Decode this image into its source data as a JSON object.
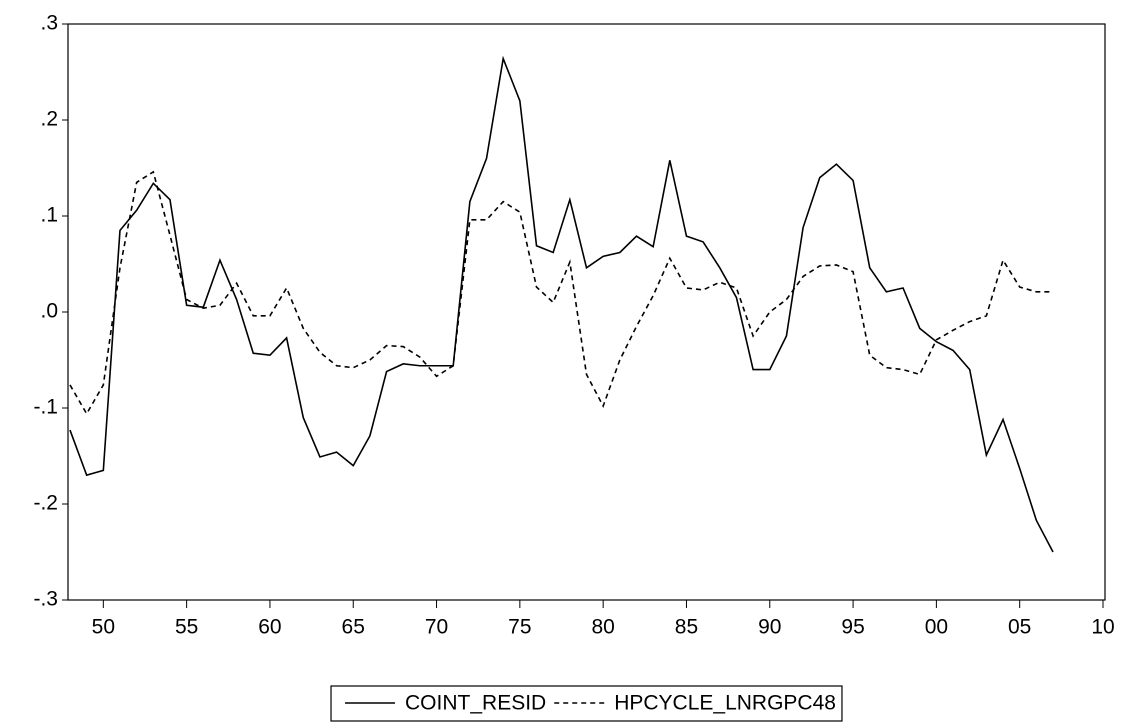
{
  "chart_data": {
    "type": "line",
    "x": [
      1948,
      1949,
      1950,
      1951,
      1952,
      1953,
      1954,
      1955,
      1956,
      1957,
      1958,
      1959,
      1960,
      1961,
      1962,
      1963,
      1964,
      1965,
      1966,
      1967,
      1968,
      1969,
      1970,
      1971,
      1972,
      1973,
      1974,
      1975,
      1976,
      1977,
      1978,
      1979,
      1980,
      1981,
      1982,
      1983,
      1984,
      1985,
      1986,
      1987,
      1988,
      1989,
      1990,
      1991,
      1992,
      1993,
      1994,
      1995,
      1996,
      1997,
      1998,
      1999,
      2000,
      2001,
      2002,
      2003,
      2004,
      2005,
      2006,
      2007
    ],
    "series": [
      {
        "name": "COINT_RESID",
        "color": "#000000",
        "style": "solid",
        "values": [
          -0.123,
          -0.17,
          -0.165,
          0.085,
          0.106,
          0.134,
          0.117,
          0.007,
          0.005,
          0.054,
          0.013,
          -0.043,
          -0.045,
          -0.027,
          -0.11,
          -0.151,
          -0.146,
          -0.16,
          -0.129,
          -0.062,
          -0.054,
          -0.056,
          -0.056,
          -0.056,
          0.115,
          0.16,
          0.264,
          0.22,
          0.069,
          0.062,
          0.117,
          0.046,
          0.058,
          0.062,
          0.079,
          0.068,
          0.158,
          0.079,
          0.073,
          0.046,
          0.015,
          -0.06,
          -0.06,
          -0.025,
          0.088,
          0.14,
          0.154,
          0.137,
          0.046,
          0.021,
          0.025,
          -0.017,
          -0.031,
          -0.04,
          -0.06,
          -0.149,
          -0.112,
          -0.163,
          -0.217,
          -0.25
        ]
      },
      {
        "name": "HPCYCLE_LNRGPC48",
        "color": "#000000",
        "style": "dashed",
        "values": [
          -0.076,
          -0.106,
          -0.076,
          0.046,
          0.135,
          0.146,
          0.08,
          0.013,
          0.004,
          0.007,
          0.03,
          -0.004,
          -0.004,
          0.025,
          -0.017,
          -0.042,
          -0.056,
          -0.058,
          -0.05,
          -0.035,
          -0.036,
          -0.047,
          -0.067,
          -0.056,
          0.096,
          0.096,
          0.115,
          0.104,
          0.026,
          0.01,
          0.052,
          -0.065,
          -0.098,
          -0.05,
          -0.015,
          0.017,
          0.056,
          0.025,
          0.023,
          0.031,
          0.025,
          -0.025,
          0,
          0.013,
          0.037,
          0.048,
          0.049,
          0.042,
          -0.045,
          -0.058,
          -0.06,
          -0.065,
          -0.029,
          -0.019,
          -0.01,
          -0.004,
          0.054,
          0.026,
          0.021,
          0.021
        ]
      }
    ],
    "xlim": [
      1948,
      2010
    ],
    "xticks": [
      {
        "value": 1950,
        "label": "50"
      },
      {
        "value": 1955,
        "label": "55"
      },
      {
        "value": 1960,
        "label": "60"
      },
      {
        "value": 1965,
        "label": "65"
      },
      {
        "value": 1970,
        "label": "70"
      },
      {
        "value": 1975,
        "label": "75"
      },
      {
        "value": 1980,
        "label": "80"
      },
      {
        "value": 1985,
        "label": "85"
      },
      {
        "value": 1990,
        "label": "90"
      },
      {
        "value": 1995,
        "label": "95"
      },
      {
        "value": 2000,
        "label": "00"
      },
      {
        "value": 2005,
        "label": "05"
      },
      {
        "value": 2010,
        "label": "10"
      }
    ],
    "ylim": [
      -0.3,
      0.3
    ],
    "yticks": [
      {
        "value": -0.3,
        "label": "-.3"
      },
      {
        "value": -0.2,
        "label": "-.2"
      },
      {
        "value": -0.1,
        "label": "-.1"
      },
      {
        "value": 0,
        "label": ".0"
      },
      {
        "value": 0.1,
        "label": ".1"
      },
      {
        "value": 0.2,
        "label": ".2"
      },
      {
        "value": 0.3,
        "label": ".3"
      }
    ],
    "grid": false,
    "legend": "bottom"
  }
}
